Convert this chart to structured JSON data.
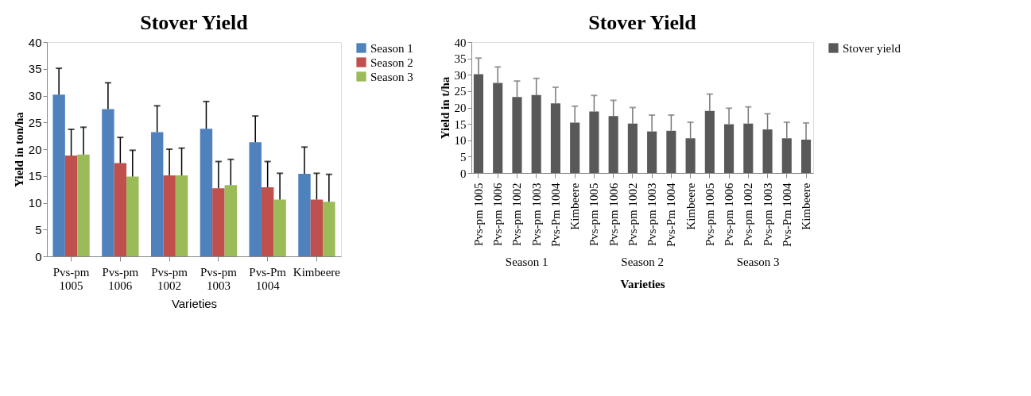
{
  "chart_data": [
    {
      "type": "bar",
      "title": "Stover Yield",
      "xlabel": "Varieties",
      "ylabel": "Yield in ton/ha",
      "categories": [
        "Pvs-pm 1005",
        "Pvs-pm 1006",
        "Pvs-pm 1002",
        "Pvs-pm 1003",
        "Pvs-Pm 1004",
        "Kimbeere"
      ],
      "series": [
        {
          "name": "Season 1",
          "color": "#4f81bd",
          "values": [
            30.2,
            27.5,
            23.2,
            23.8,
            21.3,
            15.4
          ],
          "errors": [
            [
              30.2,
              35.1
            ],
            [
              27.5,
              32.4
            ],
            [
              23.2,
              28.1
            ],
            [
              23.8,
              28.9
            ],
            [
              21.3,
              26.2
            ],
            [
              15.4,
              20.4
            ]
          ]
        },
        {
          "name": "Season 2",
          "color": "#c0504d",
          "values": [
            18.8,
            17.4,
            15.1,
            12.7,
            12.9,
            10.6
          ],
          "errors": [
            [
              18.8,
              23.7
            ],
            [
              17.4,
              22.2
            ],
            [
              15.1,
              20.0
            ],
            [
              12.7,
              17.7
            ],
            [
              12.9,
              17.7
            ],
            [
              10.6,
              15.5
            ]
          ]
        },
        {
          "name": "Season 3",
          "color": "#9bbb59",
          "values": [
            19.0,
            14.9,
            15.1,
            13.3,
            10.6,
            10.2
          ],
          "errors": [
            [
              19.0,
              24.1
            ],
            [
              14.9,
              19.8
            ],
            [
              15.1,
              20.2
            ],
            [
              13.3,
              18.1
            ],
            [
              10.6,
              15.5
            ],
            [
              10.2,
              15.3
            ]
          ]
        }
      ],
      "ylim": [
        0,
        40
      ],
      "yticks": [
        0,
        5,
        10,
        15,
        20,
        25,
        30,
        35,
        40
      ],
      "grid": false,
      "legend": "right"
    },
    {
      "type": "bar",
      "title": "Stover Yield",
      "xlabel": "Varieties",
      "ylabel": "Yield in t/ha",
      "categories": [
        "Pvs-pm 1005",
        "Pvs-pm 1006",
        "Pvs-pm 1002",
        "Pvs-pm 1003",
        "Pvs-Pm 1004",
        "Kimbeere",
        "Pvs-pm 1005",
        "Pvs-pm 1006",
        "Pvs-pm 1002",
        "Pvs-pm 1003",
        "Pvs-Pm 1004",
        "Kimbeere",
        "Pvs-pm 1005",
        "Pvs-pm 1006",
        "Pvs-pm 1002",
        "Pvs-pm 1003",
        "Pvs-Pm 1004",
        "Kimbeere"
      ],
      "series": [
        {
          "name": "Stover yield",
          "color": "#595959",
          "values": [
            30.2,
            27.5,
            23.2,
            23.8,
            21.3,
            15.4,
            18.8,
            17.4,
            15.1,
            12.7,
            12.9,
            10.6,
            19.0,
            14.9,
            15.1,
            13.3,
            10.6,
            10.2
          ],
          "errors": [
            [
              30.2,
              35.1
            ],
            [
              27.5,
              32.4
            ],
            [
              23.2,
              28.1
            ],
            [
              23.8,
              28.9
            ],
            [
              21.3,
              26.2
            ],
            [
              15.4,
              20.4
            ],
            [
              18.8,
              23.7
            ],
            [
              17.4,
              22.2
            ],
            [
              15.1,
              20.0
            ],
            [
              12.7,
              17.7
            ],
            [
              12.9,
              17.7
            ],
            [
              10.6,
              15.5
            ],
            [
              19.0,
              24.1
            ],
            [
              14.9,
              19.8
            ],
            [
              15.1,
              20.2
            ],
            [
              13.3,
              18.1
            ],
            [
              10.6,
              15.5
            ],
            [
              10.2,
              15.3
            ]
          ]
        }
      ],
      "annotations": [
        "Season 1",
        "Season 2",
        "Season 3"
      ],
      "ylim": [
        0,
        40
      ],
      "yticks": [
        0,
        5,
        10,
        15,
        20,
        25,
        30,
        35,
        40
      ],
      "grid": false,
      "legend": "right"
    }
  ]
}
